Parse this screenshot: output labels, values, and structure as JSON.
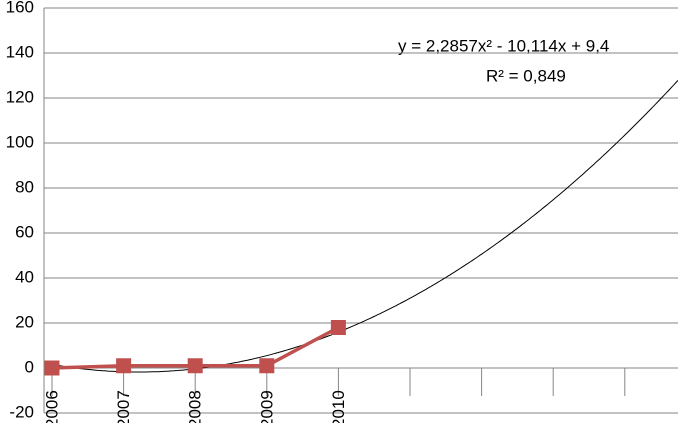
{
  "chart_data": {
    "type": "line",
    "categories": [
      "2006",
      "2007",
      "2008",
      "2009",
      "2010",
      null,
      null,
      null,
      null
    ],
    "series": [
      {
        "color": "#c0504d",
        "values": [
          0,
          1,
          1,
          1,
          18,
          null,
          null,
          null,
          null
        ]
      }
    ],
    "ylim": [
      -20,
      160
    ],
    "yticks": [
      -20,
      0,
      20,
      40,
      60,
      80,
      100,
      120,
      140,
      160
    ],
    "grid": true,
    "trendline": {
      "equation": "y = 2,2857x² - 10,114x + 9,4",
      "r_squared": "R² = 0,849",
      "coefficients": [
        2.2857,
        -10.114,
        9.4
      ],
      "color": "#000000"
    }
  }
}
